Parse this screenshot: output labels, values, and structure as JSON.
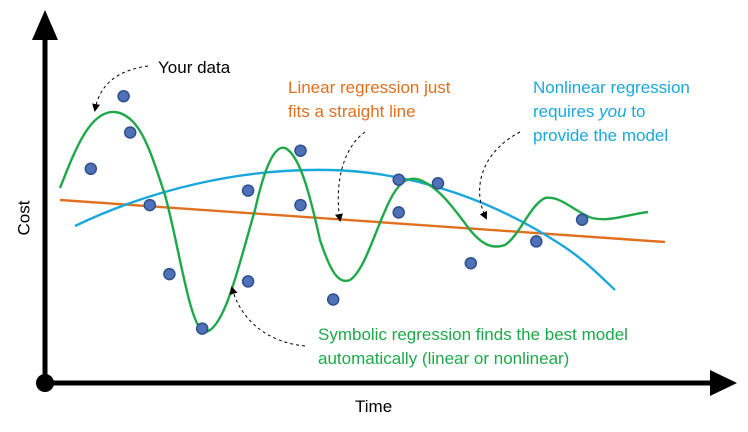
{
  "axes": {
    "x_label": "Time",
    "y_label": "Cost"
  },
  "labels": {
    "your_data": "Your data",
    "linear": [
      "Linear regression just",
      "fits a straight line"
    ],
    "nonlinear_line1": "Nonlinear regression",
    "nonlinear_line2_before": "requires ",
    "nonlinear_line2_em": "you",
    "nonlinear_line2_after": " to",
    "nonlinear_line3": "provide the model",
    "symbolic": [
      "Symbolic regression finds the best model",
      "automatically (linear or nonlinear)"
    ]
  },
  "colors": {
    "axis": "#000000",
    "point_fill": "#4f72b6",
    "point_stroke": "#2f4f8f",
    "linear": "#e0701f",
    "nonlinear": "#1aa8dc",
    "symbolic": "#1fa84a",
    "annotation_arrow": "#000000"
  },
  "series": {
    "data_points": [
      {
        "t": 0.12,
        "c": 0.79
      },
      {
        "t": 0.07,
        "c": 0.59
      },
      {
        "t": 0.13,
        "c": 0.69
      },
      {
        "t": 0.16,
        "c": 0.49
      },
      {
        "t": 0.19,
        "c": 0.3
      },
      {
        "t": 0.24,
        "c": 0.15
      },
      {
        "t": 0.31,
        "c": 0.53
      },
      {
        "t": 0.31,
        "c": 0.28
      },
      {
        "t": 0.39,
        "c": 0.64
      },
      {
        "t": 0.39,
        "c": 0.49
      },
      {
        "t": 0.44,
        "c": 0.23
      },
      {
        "t": 0.54,
        "c": 0.56
      },
      {
        "t": 0.54,
        "c": 0.47
      },
      {
        "t": 0.6,
        "c": 0.55
      },
      {
        "t": 0.65,
        "c": 0.33
      },
      {
        "t": 0.75,
        "c": 0.39
      },
      {
        "t": 0.82,
        "c": 0.45
      }
    ]
  }
}
